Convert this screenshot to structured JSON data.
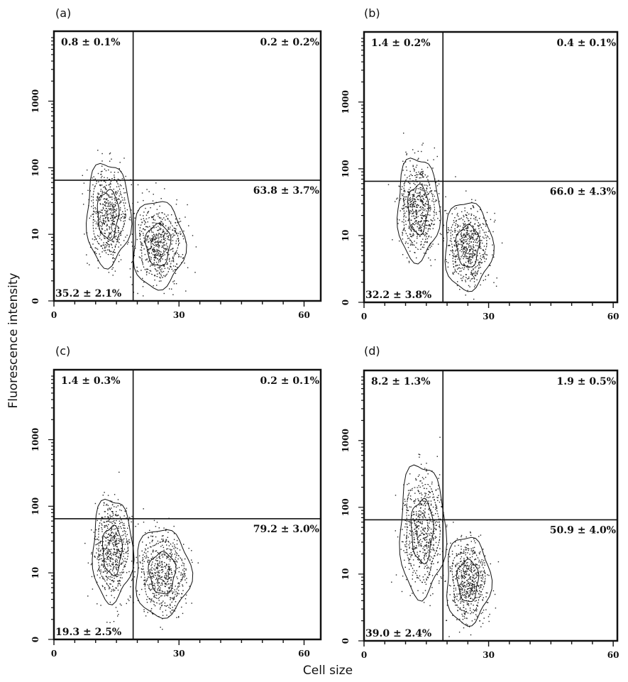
{
  "figure": {
    "xlabel": "Cell size",
    "ylabel": "Fluorescence intensity"
  },
  "chart_data": [
    {
      "type": "scatter",
      "panel": "(a)",
      "x_ticks": [
        "0",
        "30",
        "60"
      ],
      "y_ticks": [
        "0",
        "10",
        "100",
        "1000"
      ],
      "xlim": [
        0,
        64
      ],
      "yscale": "log",
      "quadrants": {
        "upper_left": "0.8 ± 0.1%",
        "upper_right": "0.2 ± 0.2%",
        "lower_right": "63.8 ± 3.7%",
        "lower_left": "35.2 ± 2.1%"
      },
      "gates": {
        "x": 19,
        "y": 65
      },
      "populations": [
        {
          "cx": 13,
          "cy": 20,
          "sx": 2.4,
          "sy": 0.35
        },
        {
          "cx": 25,
          "cy": 7,
          "sx": 2.8,
          "sy": 0.3
        }
      ]
    },
    {
      "type": "scatter",
      "panel": "(b)",
      "x_ticks": [
        "0",
        "30",
        "60"
      ],
      "y_ticks": [
        "0",
        "10",
        "100",
        "1000"
      ],
      "xlim": [
        0,
        61
      ],
      "yscale": "log",
      "quadrants": {
        "upper_left": "1.4 ± 0.2%",
        "upper_right": "0.4 ± 0.1%",
        "lower_right": "66.0 ± 4.3%",
        "lower_left": "32.2 ± 3.8%"
      },
      "gates": {
        "x": 19,
        "y": 65
      },
      "populations": [
        {
          "cx": 13,
          "cy": 25,
          "sx": 2.3,
          "sy": 0.35
        },
        {
          "cx": 25,
          "cy": 7,
          "sx": 2.6,
          "sy": 0.3
        }
      ]
    },
    {
      "type": "scatter",
      "panel": "(c)",
      "x_ticks": [
        "0",
        "30",
        "60"
      ],
      "y_ticks": [
        "0",
        "10",
        "100",
        "1000"
      ],
      "xlim": [
        0,
        64
      ],
      "yscale": "log",
      "quadrants": {
        "upper_left": "1.4 ± 0.3%",
        "upper_right": "0.2 ± 0.1%",
        "lower_right": "79.2 ± 3.0%",
        "lower_left": "19.3 ± 2.5%"
      },
      "gates": {
        "x": 19,
        "y": 65
      },
      "populations": [
        {
          "cx": 14,
          "cy": 22,
          "sx": 2.2,
          "sy": 0.35
        },
        {
          "cx": 26,
          "cy": 10,
          "sx": 3.0,
          "sy": 0.3
        }
      ]
    },
    {
      "type": "scatter",
      "panel": "(d)",
      "x_ticks": [
        "0",
        "30",
        "60"
      ],
      "y_ticks": [
        "0",
        "10",
        "100",
        "1000"
      ],
      "xlim": [
        0,
        61
      ],
      "yscale": "log",
      "quadrants": {
        "upper_left": "8.2 ± 1.3%",
        "upper_right": "1.9 ± 0.5%",
        "lower_right": "50.9 ± 4.0%",
        "lower_left": "39.0 ± 2.4%"
      },
      "gates": {
        "x": 19,
        "y": 65
      },
      "populations": [
        {
          "cx": 14,
          "cy": 45,
          "sx": 2.5,
          "sy": 0.45
        },
        {
          "cx": 25,
          "cy": 8,
          "sx": 2.4,
          "sy": 0.3
        }
      ]
    }
  ]
}
